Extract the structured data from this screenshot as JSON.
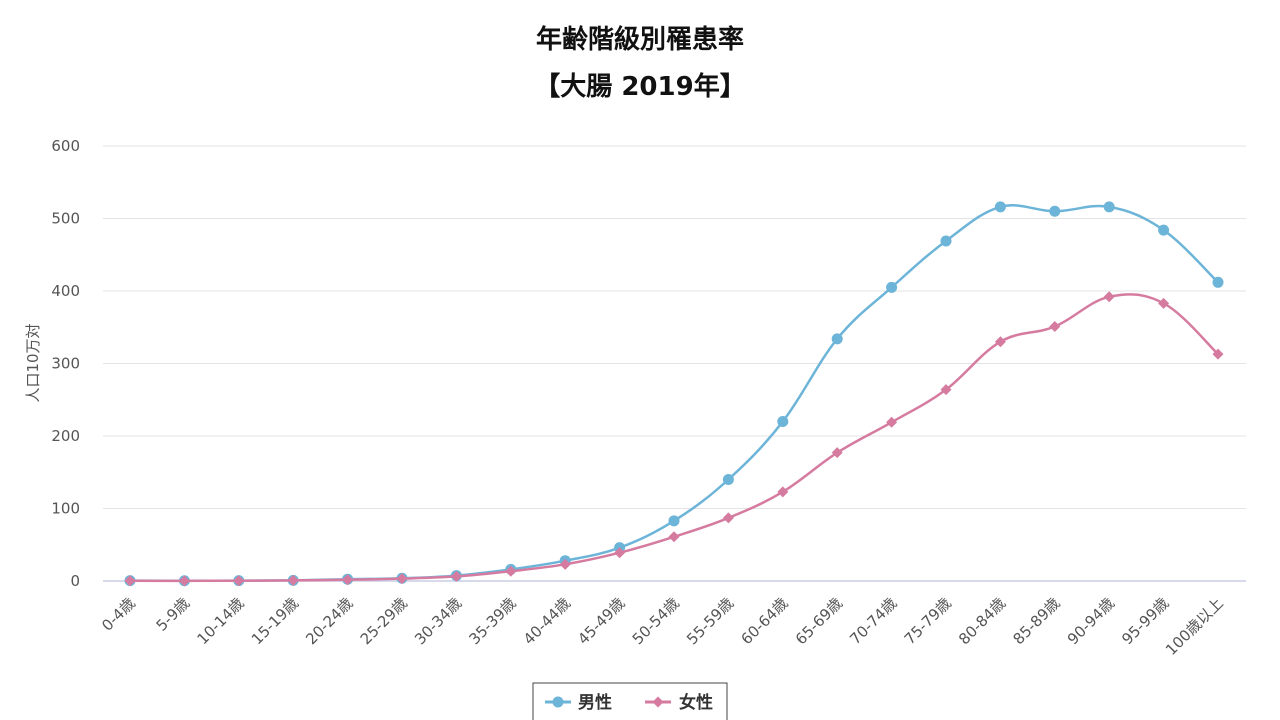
{
  "chart_data": {
    "type": "line",
    "title": "年齢階級別罹患率",
    "subtitle": "【大腸 2019年】",
    "ylabel": "人口10万対",
    "xlabel": "",
    "ylim": [
      0,
      600
    ],
    "y_ticks": [
      0,
      100,
      200,
      300,
      400,
      500,
      600
    ],
    "grid": true,
    "legend_position": "bottom",
    "categories": [
      "0-4歳",
      "5-9歳",
      "10-14歳",
      "15-19歳",
      "20-24歳",
      "25-29歳",
      "30-34歳",
      "35-39歳",
      "40-44歳",
      "45-49歳",
      "50-54歳",
      "55-59歳",
      "60-64歳",
      "65-69歳",
      "70-74歳",
      "75-79歳",
      "80-84歳",
      "85-89歳",
      "90-94歳",
      "95-99歳",
      "100歳以上"
    ],
    "series": [
      {
        "name": "男性",
        "color": "#6CB4D8",
        "marker": "circle",
        "values": [
          0.5,
          0.3,
          0.5,
          0.9,
          2.5,
          3.8,
          7.5,
          16,
          28,
          46,
          83,
          140,
          220,
          334,
          405,
          469,
          516,
          510,
          516,
          484,
          412
        ]
      },
      {
        "name": "女性",
        "color": "#D67BA0",
        "marker": "diamond",
        "values": [
          0.3,
          0.2,
          0.4,
          0.8,
          1.8,
          3.3,
          6.3,
          13.5,
          23,
          39,
          61,
          87,
          123,
          177,
          219,
          264,
          330,
          351,
          392,
          383,
          313
        ]
      }
    ]
  }
}
